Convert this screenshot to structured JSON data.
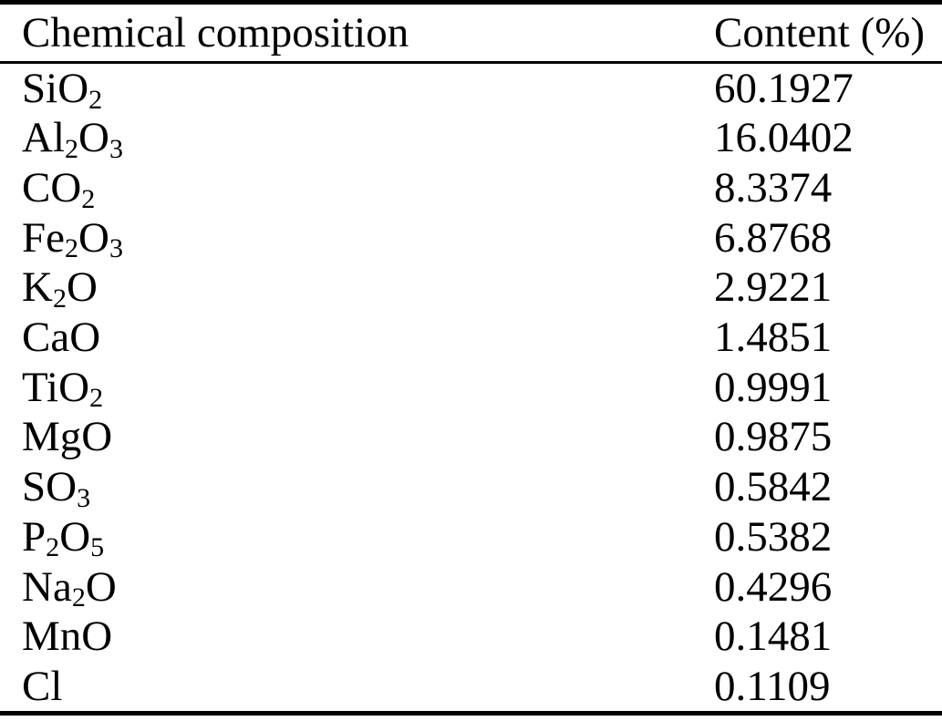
{
  "table": {
    "header": {
      "col1": "Chemical composition",
      "col2": "Content (%)"
    },
    "rows": [
      {
        "formula": [
          {
            "text": "SiO"
          },
          {
            "sub": "2"
          }
        ],
        "content": "60.1927"
      },
      {
        "formula": [
          {
            "text": "Al"
          },
          {
            "sub": "2"
          },
          {
            "text": "O"
          },
          {
            "sub": "3"
          }
        ],
        "content": "16.0402"
      },
      {
        "formula": [
          {
            "text": "CO"
          },
          {
            "sub": "2"
          }
        ],
        "content": "8.3374"
      },
      {
        "formula": [
          {
            "text": "Fe"
          },
          {
            "sub": "2"
          },
          {
            "text": "O"
          },
          {
            "sub": "3"
          }
        ],
        "content": "6.8768"
      },
      {
        "formula": [
          {
            "text": "K"
          },
          {
            "sub": "2"
          },
          {
            "text": "O"
          }
        ],
        "content": "2.9221"
      },
      {
        "formula": [
          {
            "text": "CaO"
          }
        ],
        "content": "1.4851"
      },
      {
        "formula": [
          {
            "text": "TiO"
          },
          {
            "sub": "2"
          }
        ],
        "content": "0.9991"
      },
      {
        "formula": [
          {
            "text": "MgO"
          }
        ],
        "content": "0.9875"
      },
      {
        "formula": [
          {
            "text": "SO"
          },
          {
            "sub": "3"
          }
        ],
        "content": "0.5842"
      },
      {
        "formula": [
          {
            "text": "P"
          },
          {
            "sub": "2"
          },
          {
            "text": "O"
          },
          {
            "sub": "5"
          }
        ],
        "content": "0.5382"
      },
      {
        "formula": [
          {
            "text": "Na"
          },
          {
            "sub": "2"
          },
          {
            "text": "O"
          }
        ],
        "content": "0.4296"
      },
      {
        "formula": [
          {
            "text": "MnO"
          }
        ],
        "content": "0.1481"
      },
      {
        "formula": [
          {
            "text": "Cl"
          }
        ],
        "content": "0.1109"
      }
    ],
    "colors": {
      "text": "#000000",
      "background": "#ffffff",
      "rule": "#000000"
    }
  }
}
